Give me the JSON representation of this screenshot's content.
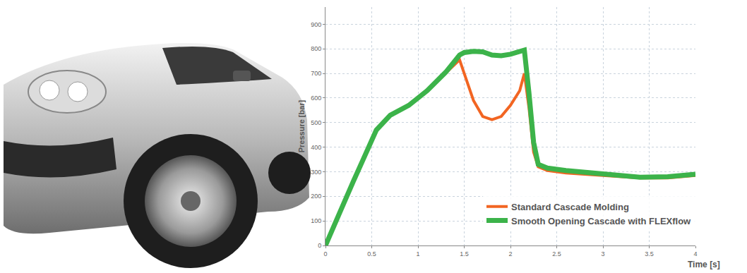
{
  "chart_data": {
    "type": "line",
    "x_label": "Time [s]",
    "y_label": "Pressure [bar]",
    "xlim": [
      0,
      4
    ],
    "xticks": [
      0,
      0.5,
      1,
      1.5,
      2,
      2.5,
      3,
      3.5,
      4
    ],
    "ylim": [
      0,
      970
    ],
    "yticks": [
      0,
      100,
      200,
      300,
      400,
      500,
      600,
      700,
      800,
      900
    ],
    "grid": true,
    "legend": "lower right",
    "x": [
      0,
      0.05,
      0.15,
      0.3,
      0.45,
      0.55,
      0.7,
      0.9,
      1.1,
      1.3,
      1.45,
      1.5,
      1.6,
      1.7,
      1.8,
      1.9,
      2.0,
      2.1,
      2.15,
      2.2,
      2.25,
      2.3,
      2.4,
      2.6,
      3.0,
      3.4,
      3.7,
      4.0
    ],
    "series": [
      {
        "name": "Standard Cascade Molding",
        "color": "#f26522",
        "values": [
          0,
          40,
          130,
          260,
          390,
          470,
          530,
          570,
          630,
          700,
          755,
          700,
          590,
          525,
          512,
          525,
          570,
          630,
          700,
          560,
          380,
          320,
          305,
          295,
          285,
          275,
          275,
          285
        ]
      },
      {
        "name": "Smooth Opening Cascade with FLEXflow",
        "color": "#3cb34a",
        "values": [
          0,
          40,
          130,
          260,
          390,
          470,
          530,
          570,
          630,
          705,
          775,
          785,
          790,
          788,
          775,
          772,
          778,
          790,
          795,
          620,
          420,
          330,
          315,
          305,
          290,
          278,
          280,
          290
        ]
      }
    ]
  }
}
